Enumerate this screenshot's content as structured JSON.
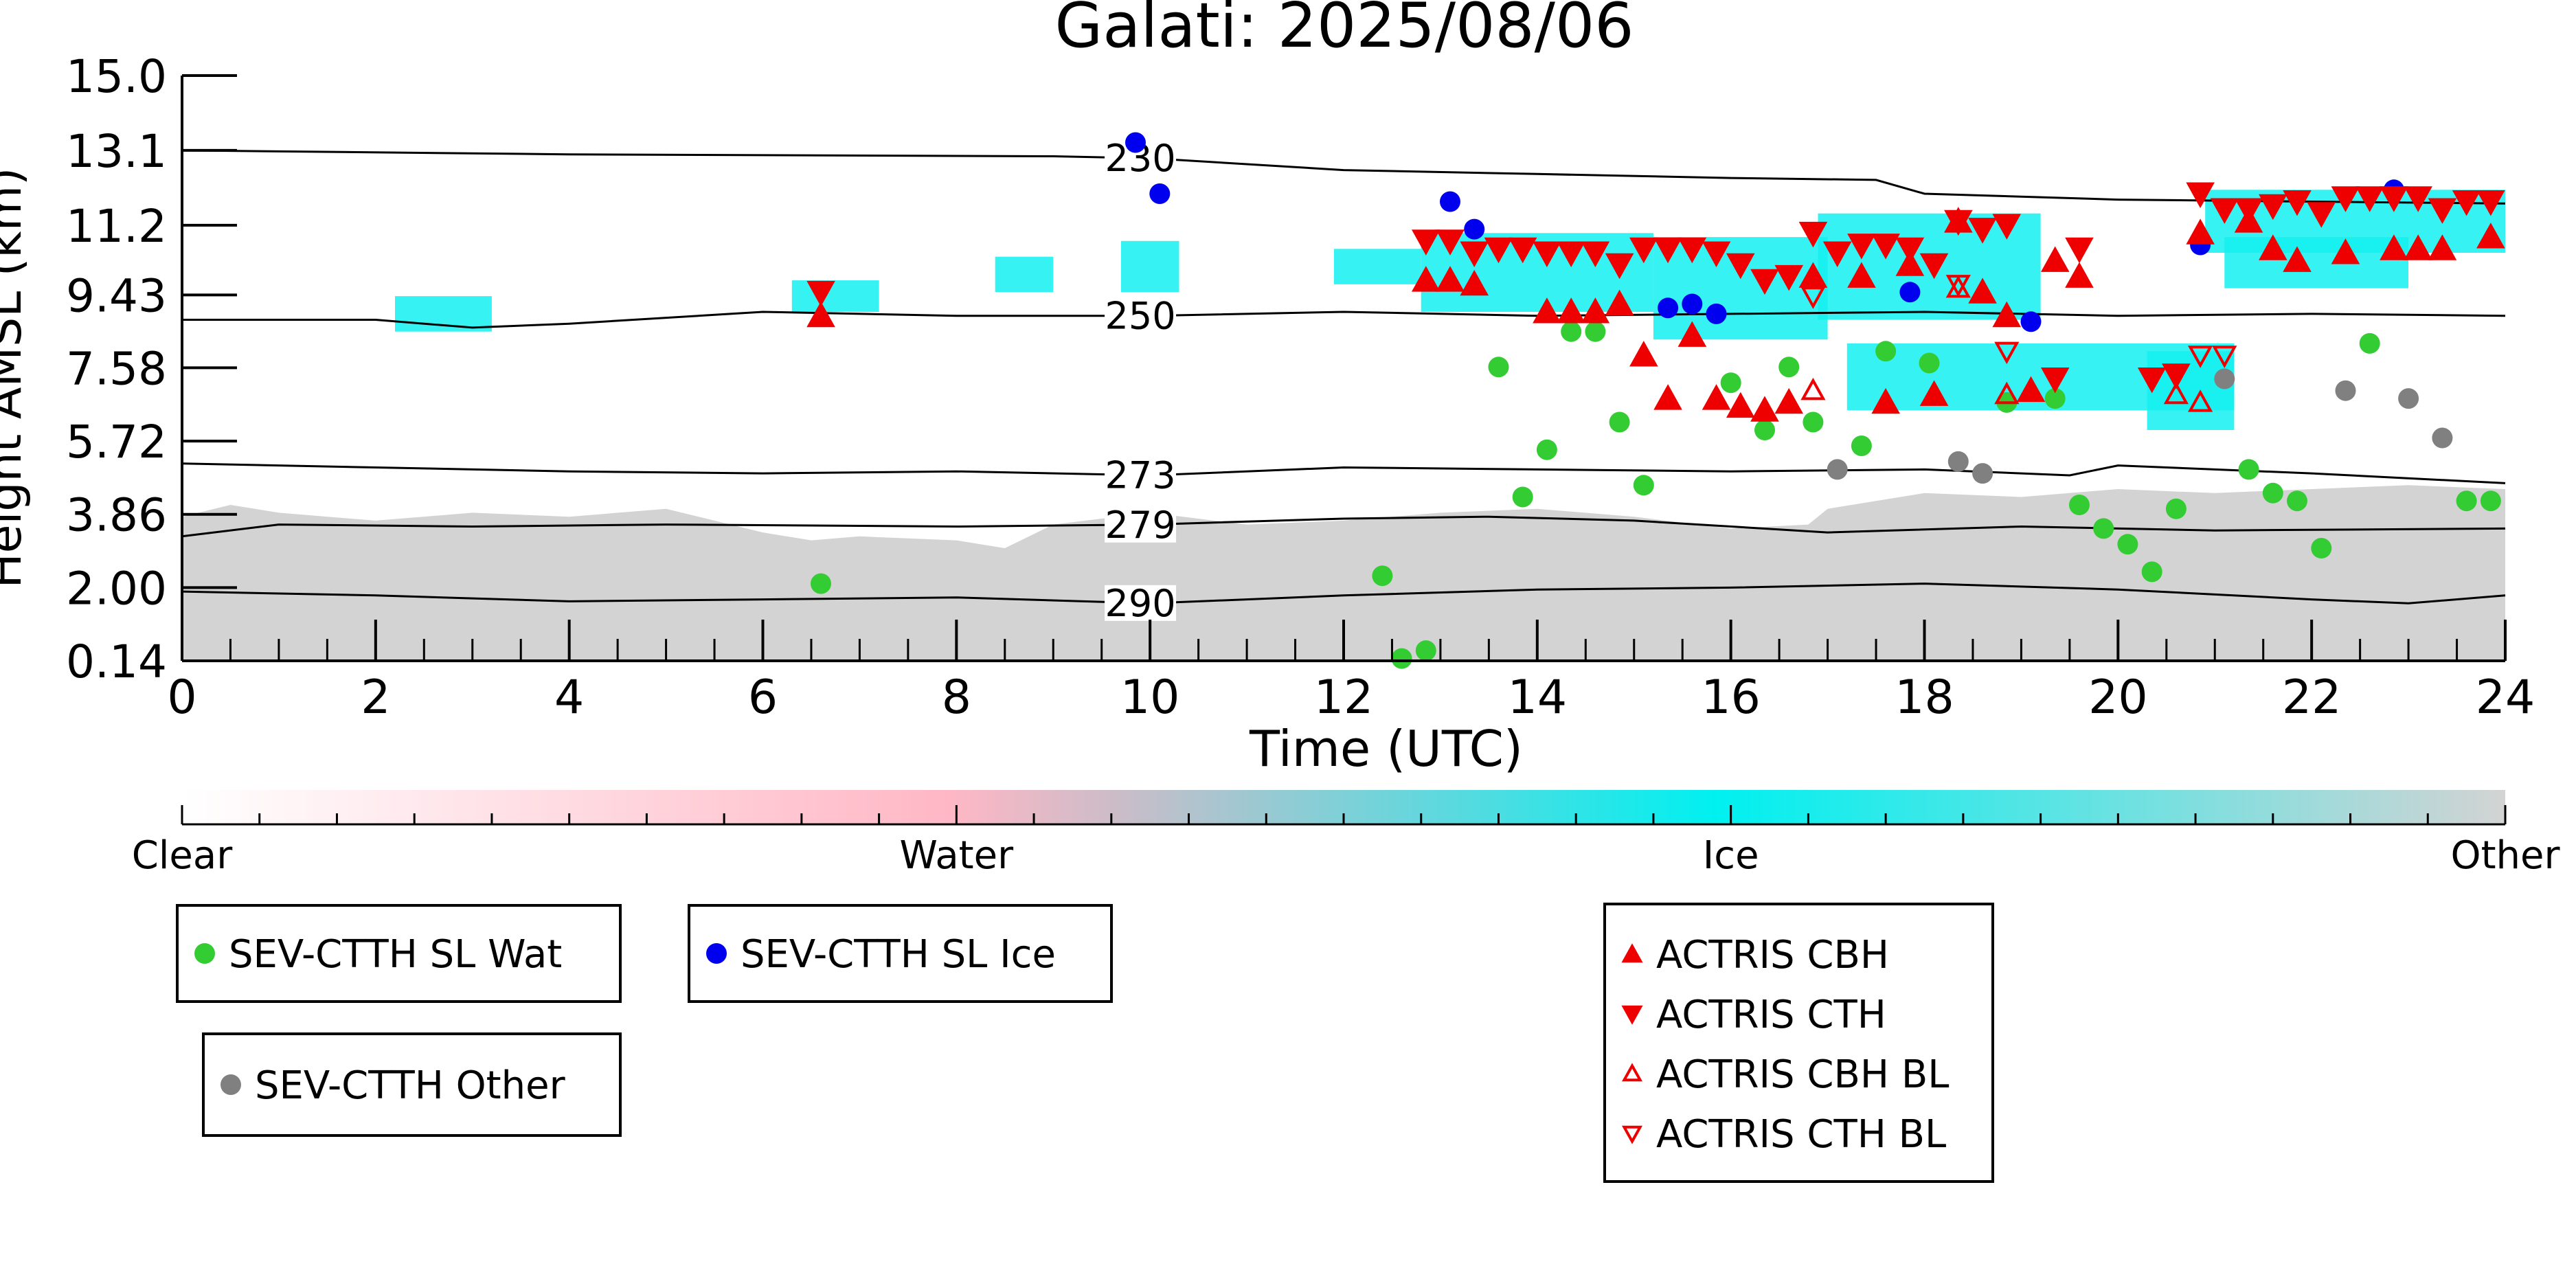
{
  "chart_data": {
    "type": "scatter",
    "title": "Galati: 2025/08/06",
    "xlabel": "Time (UTC)",
    "ylabel": "Height AMSL (km)",
    "xlim": [
      0,
      24
    ],
    "ylim": [
      0.14,
      15.0
    ],
    "x_ticks": [
      "0",
      "2",
      "4",
      "6",
      "8",
      "10",
      "12",
      "14",
      "16",
      "18",
      "20",
      "22",
      "24"
    ],
    "y_ticks": [
      "15.0",
      "13.1",
      "11.2",
      "9.43",
      "7.58",
      "5.72",
      "3.86",
      "2.00",
      "0.14"
    ],
    "contours": [
      {
        "label": "230",
        "label_x": 9.9,
        "points": [
          [
            0,
            13.1
          ],
          [
            4,
            13.0
          ],
          [
            9,
            12.95
          ],
          [
            10,
            12.9
          ],
          [
            12,
            12.6
          ],
          [
            14,
            12.5
          ],
          [
            16,
            12.4
          ],
          [
            17.5,
            12.35
          ],
          [
            18,
            12.0
          ],
          [
            20,
            11.85
          ],
          [
            22,
            11.8
          ],
          [
            24,
            11.75
          ]
        ]
      },
      {
        "label": "250",
        "label_x": 9.9,
        "points": [
          [
            0,
            8.8
          ],
          [
            2,
            8.8
          ],
          [
            3,
            8.6
          ],
          [
            4,
            8.7
          ],
          [
            6,
            9.0
          ],
          [
            8,
            8.9
          ],
          [
            10,
            8.9
          ],
          [
            12,
            9.0
          ],
          [
            14,
            8.9
          ],
          [
            16,
            8.95
          ],
          [
            18,
            9.0
          ],
          [
            20,
            8.9
          ],
          [
            22,
            8.95
          ],
          [
            24,
            8.9
          ]
        ]
      },
      {
        "label": "273",
        "label_x": 9.9,
        "points": [
          [
            0,
            5.15
          ],
          [
            2,
            5.05
          ],
          [
            4,
            4.95
          ],
          [
            6,
            4.9
          ],
          [
            8,
            4.95
          ],
          [
            10,
            4.85
          ],
          [
            12,
            5.05
          ],
          [
            14,
            5.0
          ],
          [
            16,
            4.95
          ],
          [
            18,
            5.0
          ],
          [
            19.5,
            4.85
          ],
          [
            20,
            5.1
          ],
          [
            21,
            5.0
          ],
          [
            22,
            4.9
          ],
          [
            24,
            4.65
          ]
        ]
      },
      {
        "label": "279",
        "label_x": 9.9,
        "points": [
          [
            0,
            3.3
          ],
          [
            1,
            3.6
          ],
          [
            3,
            3.55
          ],
          [
            5,
            3.6
          ],
          [
            8,
            3.55
          ],
          [
            10,
            3.6
          ],
          [
            12,
            3.75
          ],
          [
            13.5,
            3.8
          ],
          [
            15,
            3.7
          ],
          [
            17,
            3.4
          ],
          [
            19,
            3.55
          ],
          [
            21,
            3.45
          ],
          [
            24,
            3.5
          ]
        ]
      },
      {
        "label": "290",
        "label_x": 9.9,
        "points": [
          [
            0,
            1.9
          ],
          [
            2,
            1.8
          ],
          [
            4,
            1.65
          ],
          [
            6,
            1.7
          ],
          [
            8,
            1.75
          ],
          [
            10,
            1.6
          ],
          [
            12,
            1.8
          ],
          [
            14,
            1.95
          ],
          [
            16,
            2.0
          ],
          [
            18,
            2.1
          ],
          [
            20,
            1.95
          ],
          [
            22,
            1.7
          ],
          [
            23,
            1.6
          ],
          [
            24,
            1.8
          ]
        ]
      }
    ],
    "series": [
      {
        "name": "SEV-CTTH SL Wat",
        "color": "#33cc33",
        "marker": "circle",
        "points": [
          [
            6.6,
            2.1
          ],
          [
            12.4,
            2.3
          ],
          [
            12.6,
            0.2
          ],
          [
            12.85,
            0.4
          ],
          [
            13.6,
            7.6
          ],
          [
            13.85,
            4.3
          ],
          [
            14.1,
            5.5
          ],
          [
            14.35,
            8.5
          ],
          [
            14.6,
            8.5
          ],
          [
            14.85,
            6.2
          ],
          [
            15.1,
            4.6
          ],
          [
            16.0,
            7.2
          ],
          [
            16.35,
            6.0
          ],
          [
            16.6,
            7.6
          ],
          [
            16.85,
            6.2
          ],
          [
            17.35,
            5.6
          ],
          [
            17.6,
            8.0
          ],
          [
            18.05,
            7.7
          ],
          [
            18.85,
            6.7
          ],
          [
            19.35,
            6.8
          ],
          [
            19.6,
            4.1
          ],
          [
            19.85,
            3.5
          ],
          [
            20.1,
            3.1
          ],
          [
            20.35,
            2.4
          ],
          [
            20.6,
            4.0
          ],
          [
            21.35,
            5.0
          ],
          [
            21.6,
            4.4
          ],
          [
            21.85,
            4.2
          ],
          [
            22.1,
            3.0
          ],
          [
            22.6,
            8.2
          ],
          [
            23.6,
            4.2
          ],
          [
            23.85,
            4.2
          ]
        ]
      },
      {
        "name": "SEV-CTTH SL Ice",
        "color": "#0000ee",
        "marker": "circle",
        "points": [
          [
            9.85,
            13.3
          ],
          [
            10.1,
            12.0
          ],
          [
            13.1,
            11.8
          ],
          [
            13.35,
            11.1
          ],
          [
            15.35,
            9.1
          ],
          [
            15.6,
            9.2
          ],
          [
            15.85,
            8.95
          ],
          [
            17.85,
            9.5
          ],
          [
            19.1,
            8.75
          ],
          [
            20.85,
            10.7
          ],
          [
            22.85,
            12.1
          ]
        ]
      },
      {
        "name": "SEV-CTTH Other",
        "color": "#808080",
        "marker": "circle",
        "points": [
          [
            17.1,
            5.0
          ],
          [
            18.35,
            5.2
          ],
          [
            18.6,
            4.9
          ],
          [
            21.1,
            7.3
          ],
          [
            22.35,
            7.0
          ],
          [
            23.0,
            6.8
          ],
          [
            23.35,
            5.8
          ]
        ]
      },
      {
        "name": "ACTRIS CBH",
        "color": "#ee0000",
        "marker": "triangle-up",
        "filled": true,
        "points": [
          [
            6.6,
            8.9
          ],
          [
            12.85,
            9.8
          ],
          [
            13.1,
            9.8
          ],
          [
            13.35,
            9.7
          ],
          [
            14.1,
            9.0
          ],
          [
            14.35,
            9.0
          ],
          [
            14.6,
            9.0
          ],
          [
            14.85,
            9.2
          ],
          [
            15.1,
            7.9
          ],
          [
            15.35,
            6.8
          ],
          [
            15.6,
            8.4
          ],
          [
            15.85,
            6.8
          ],
          [
            16.1,
            6.6
          ],
          [
            16.35,
            6.5
          ],
          [
            16.6,
            6.7
          ],
          [
            16.85,
            9.9
          ],
          [
            17.35,
            9.9
          ],
          [
            17.6,
            6.7
          ],
          [
            17.85,
            10.2
          ],
          [
            18.1,
            6.9
          ],
          [
            18.35,
            11.3
          ],
          [
            18.6,
            9.5
          ],
          [
            18.85,
            8.9
          ],
          [
            19.1,
            7.0
          ],
          [
            19.35,
            10.3
          ],
          [
            19.6,
            9.9
          ],
          [
            20.85,
            11.0
          ],
          [
            21.35,
            11.3
          ],
          [
            21.6,
            10.6
          ],
          [
            21.85,
            10.3
          ],
          [
            22.35,
            10.5
          ],
          [
            22.85,
            10.6
          ],
          [
            23.1,
            10.6
          ],
          [
            23.35,
            10.6
          ],
          [
            23.85,
            10.9
          ]
        ]
      },
      {
        "name": "ACTRIS CTH",
        "color": "#ee0000",
        "marker": "triangle-down",
        "filled": true,
        "points": [
          [
            6.6,
            9.5
          ],
          [
            12.85,
            10.8
          ],
          [
            13.1,
            10.8
          ],
          [
            13.35,
            10.5
          ],
          [
            13.6,
            10.6
          ],
          [
            13.85,
            10.6
          ],
          [
            14.1,
            10.5
          ],
          [
            14.35,
            10.5
          ],
          [
            14.6,
            10.5
          ],
          [
            14.85,
            10.2
          ],
          [
            15.1,
            10.6
          ],
          [
            15.35,
            10.6
          ],
          [
            15.6,
            10.6
          ],
          [
            15.85,
            10.5
          ],
          [
            16.1,
            10.2
          ],
          [
            16.35,
            9.8
          ],
          [
            16.6,
            9.9
          ],
          [
            16.85,
            11.0
          ],
          [
            17.1,
            10.5
          ],
          [
            17.35,
            10.7
          ],
          [
            17.6,
            10.7
          ],
          [
            17.85,
            10.6
          ],
          [
            18.1,
            10.2
          ],
          [
            18.35,
            11.3
          ],
          [
            18.6,
            11.1
          ],
          [
            18.85,
            11.2
          ],
          [
            19.35,
            7.3
          ],
          [
            19.6,
            10.6
          ],
          [
            20.35,
            7.3
          ],
          [
            20.6,
            7.4
          ],
          [
            20.85,
            12.0
          ],
          [
            21.1,
            11.6
          ],
          [
            21.35,
            11.6
          ],
          [
            21.6,
            11.7
          ],
          [
            21.85,
            11.8
          ],
          [
            22.1,
            11.5
          ],
          [
            22.35,
            11.9
          ],
          [
            22.6,
            11.9
          ],
          [
            22.85,
            11.9
          ],
          [
            23.1,
            11.9
          ],
          [
            23.35,
            11.6
          ],
          [
            23.6,
            11.8
          ],
          [
            23.85,
            11.8
          ]
        ]
      },
      {
        "name": "ACTRIS CBH BL",
        "color": "#ee0000",
        "marker": "triangle-up",
        "filled": false,
        "points": [
          [
            16.85,
            7.0
          ],
          [
            18.35,
            9.6
          ],
          [
            18.85,
            6.9
          ],
          [
            20.6,
            6.9
          ],
          [
            20.85,
            6.7
          ]
        ]
      },
      {
        "name": "ACTRIS CTH BL",
        "color": "#ee0000",
        "marker": "triangle-down",
        "filled": false,
        "points": [
          [
            16.85,
            9.4
          ],
          [
            18.35,
            9.7
          ],
          [
            18.85,
            8.0
          ],
          [
            20.85,
            7.9
          ],
          [
            21.1,
            7.9
          ]
        ]
      }
    ],
    "ice_cloud_patches": [
      [
        2.2,
        3.2,
        8.5,
        9.4
      ],
      [
        6.3,
        7.2,
        9.0,
        9.8
      ],
      [
        8.4,
        9.0,
        9.5,
        10.4
      ],
      [
        9.7,
        10.3,
        9.5,
        10.8
      ],
      [
        11.9,
        12.8,
        9.7,
        10.6
      ],
      [
        12.8,
        15.2,
        9.0,
        11.0
      ],
      [
        15.2,
        17.0,
        8.3,
        10.9
      ],
      [
        16.9,
        19.2,
        8.8,
        11.5
      ],
      [
        17.2,
        21.2,
        6.5,
        8.2
      ],
      [
        20.3,
        21.2,
        6.0,
        8.0
      ],
      [
        20.9,
        24.0,
        10.5,
        12.1
      ],
      [
        21.1,
        23.0,
        9.6,
        10.9
      ]
    ],
    "low_other_layer": [
      [
        0,
        3.8
      ],
      [
        0.5,
        4.1
      ],
      [
        1,
        3.9
      ],
      [
        2,
        3.7
      ],
      [
        3,
        3.9
      ],
      [
        4,
        3.8
      ],
      [
        5,
        4.0
      ],
      [
        6,
        3.4
      ],
      [
        6.5,
        3.2
      ],
      [
        7,
        3.3
      ],
      [
        8,
        3.2
      ],
      [
        8.5,
        3.0
      ],
      [
        9,
        3.6
      ],
      [
        10,
        3.9
      ],
      [
        11,
        3.6
      ],
      [
        12,
        3.7
      ],
      [
        13,
        3.9
      ],
      [
        14,
        4.0
      ],
      [
        15,
        3.8
      ],
      [
        16,
        3.5
      ],
      [
        16.8,
        3.6
      ],
      [
        17,
        4.0
      ],
      [
        18,
        4.4
      ],
      [
        19,
        4.3
      ],
      [
        20,
        4.5
      ],
      [
        21,
        4.4
      ],
      [
        22,
        4.5
      ],
      [
        23,
        4.6
      ],
      [
        24,
        4.5
      ]
    ],
    "colorbar": {
      "labels": [
        "Clear",
        "Water",
        "Ice",
        "Other"
      ],
      "stops": [
        {
          "pos": 0.0,
          "color": "#ffffff"
        },
        {
          "pos": 0.33,
          "color": "#ffb7c5"
        },
        {
          "pos": 0.4,
          "color": "#cdbcc8"
        },
        {
          "pos": 0.66,
          "color": "#00f0f0"
        },
        {
          "pos": 1.0,
          "color": "#d3d3d3"
        }
      ]
    },
    "legends": [
      {
        "id": "legend-wat",
        "entries": [
          {
            "label": "SEV-CTTH SL Wat",
            "color": "#33cc33",
            "marker": "circle"
          }
        ]
      },
      {
        "id": "legend-ice",
        "entries": [
          {
            "label": "SEV-CTTH SL Ice",
            "color": "#0000ee",
            "marker": "circle"
          }
        ]
      },
      {
        "id": "legend-other",
        "entries": [
          {
            "label": "SEV-CTTH Other",
            "color": "#808080",
            "marker": "circle"
          }
        ]
      },
      {
        "id": "legend-actris",
        "entries": [
          {
            "label": "ACTRIS CBH",
            "color": "#ee0000",
            "marker": "triangle-up"
          },
          {
            "label": "ACTRIS CTH",
            "color": "#ee0000",
            "marker": "triangle-down"
          },
          {
            "label": "ACTRIS CBH BL",
            "color": "#ee0000",
            "marker": "triangle-up-open"
          },
          {
            "label": "ACTRIS CTH BL",
            "color": "#ee0000",
            "marker": "triangle-down-open"
          }
        ]
      }
    ],
    "grid": false
  }
}
